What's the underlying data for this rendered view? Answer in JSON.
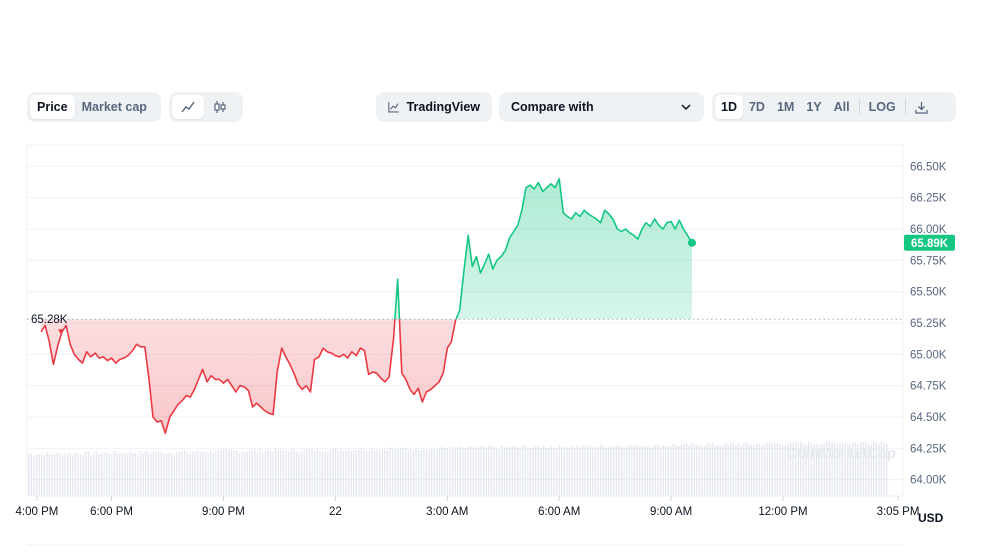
{
  "toolbar": {
    "type_tabs": [
      {
        "label": "Price",
        "active": true
      },
      {
        "label": "Market cap",
        "active": false
      }
    ],
    "mode_icons": [
      {
        "icon": "line-chart-icon",
        "active": true
      },
      {
        "icon": "candlestick-icon",
        "active": false
      }
    ],
    "tradingview_label": "TradingView",
    "compare_label": "Compare with",
    "ranges": [
      {
        "label": "1D",
        "active": true
      },
      {
        "label": "7D",
        "active": false
      },
      {
        "label": "1M",
        "active": false
      },
      {
        "label": "1Y",
        "active": false
      },
      {
        "label": "All",
        "active": false
      }
    ],
    "log_label": "LOG",
    "download_icon": "download-icon"
  },
  "watermark": "CoinMarketCap",
  "colors": {
    "up": "#16c784",
    "down": "#ea3943",
    "grid": "#eff2f5",
    "text": "#58667e"
  },
  "chart_data": {
    "type": "line",
    "currency": "USD",
    "open_label": "65.28K",
    "open_value": 65.28,
    "current_label": "65.89K",
    "current_value": 65.89,
    "ylim": [
      63.87,
      66.67
    ],
    "y_ticks": [
      {
        "value": 66.5,
        "label": "66.50K"
      },
      {
        "value": 66.25,
        "label": "66.25K"
      },
      {
        "value": 66.0,
        "label": "66.00K"
      },
      {
        "value": 65.75,
        "label": "65.75K"
      },
      {
        "value": 65.5,
        "label": "65.50K"
      },
      {
        "value": 65.25,
        "label": "65.25K"
      },
      {
        "value": 65.0,
        "label": "65.00K"
      },
      {
        "value": 64.75,
        "label": "64.75K"
      },
      {
        "value": 64.5,
        "label": "64.50K"
      },
      {
        "value": 64.25,
        "label": "64.25K"
      },
      {
        "value": 64.0,
        "label": "64.00K"
      }
    ],
    "xlim": [
      15.733,
      39.217
    ],
    "x_ticks": [
      {
        "value": 16.0,
        "label": "4:00 PM"
      },
      {
        "value": 18.0,
        "label": "6:00 PM"
      },
      {
        "value": 21.0,
        "label": "9:00 PM"
      },
      {
        "value": 24.0,
        "label": "22"
      },
      {
        "value": 27.0,
        "label": "3:00 AM"
      },
      {
        "value": 30.0,
        "label": "6:00 AM"
      },
      {
        "value": 33.0,
        "label": "9:00 AM"
      },
      {
        "value": 36.0,
        "label": "12:00 PM"
      },
      {
        "value": 39.083,
        "label": "3:05 PM"
      }
    ],
    "series": [
      {
        "values": [
          [
            16.11,
            65.18
          ],
          [
            16.22,
            65.23
          ],
          [
            16.33,
            65.1
          ],
          [
            16.44,
            64.92
          ],
          [
            16.56,
            65.07
          ],
          [
            16.67,
            65.18
          ],
          [
            16.78,
            65.23
          ],
          [
            16.89,
            65.08
          ],
          [
            17.0,
            65.0
          ],
          [
            17.11,
            64.96
          ],
          [
            17.22,
            64.93
          ],
          [
            17.33,
            65.02
          ],
          [
            17.44,
            64.98
          ],
          [
            17.56,
            65.01
          ],
          [
            17.67,
            64.97
          ],
          [
            17.78,
            64.98
          ],
          [
            17.89,
            64.95
          ],
          [
            18.0,
            64.97
          ],
          [
            18.11,
            64.93
          ],
          [
            18.22,
            64.96
          ],
          [
            18.33,
            64.97
          ],
          [
            18.44,
            64.99
          ],
          [
            18.56,
            65.03
          ],
          [
            18.67,
            65.08
          ],
          [
            18.78,
            65.06
          ],
          [
            18.89,
            65.06
          ],
          [
            19.0,
            64.81
          ],
          [
            19.11,
            64.5
          ],
          [
            19.22,
            64.46
          ],
          [
            19.33,
            64.47
          ],
          [
            19.44,
            64.37
          ],
          [
            19.56,
            64.5
          ],
          [
            19.67,
            64.55
          ],
          [
            19.78,
            64.6
          ],
          [
            19.89,
            64.63
          ],
          [
            20.0,
            64.67
          ],
          [
            20.11,
            64.66
          ],
          [
            20.22,
            64.72
          ],
          [
            20.33,
            64.8
          ],
          [
            20.44,
            64.88
          ],
          [
            20.56,
            64.78
          ],
          [
            20.67,
            64.83
          ],
          [
            20.78,
            64.8
          ],
          [
            20.89,
            64.8
          ],
          [
            21.0,
            64.77
          ],
          [
            21.11,
            64.8
          ],
          [
            21.22,
            64.75
          ],
          [
            21.33,
            64.7
          ],
          [
            21.44,
            64.75
          ],
          [
            21.56,
            64.74
          ],
          [
            21.67,
            64.71
          ],
          [
            21.78,
            64.58
          ],
          [
            21.89,
            64.61
          ],
          [
            22.0,
            64.58
          ],
          [
            22.11,
            64.55
          ],
          [
            22.22,
            64.53
          ],
          [
            22.33,
            64.52
          ],
          [
            22.44,
            64.86
          ],
          [
            22.56,
            65.05
          ],
          [
            22.67,
            64.98
          ],
          [
            22.78,
            64.92
          ],
          [
            22.89,
            64.85
          ],
          [
            23.0,
            64.76
          ],
          [
            23.11,
            64.72
          ],
          [
            23.22,
            64.75
          ],
          [
            23.33,
            64.7
          ],
          [
            23.44,
            64.96
          ],
          [
            23.56,
            64.98
          ],
          [
            23.67,
            65.05
          ],
          [
            23.78,
            65.02
          ],
          [
            23.89,
            65.01
          ],
          [
            24.0,
            64.99
          ],
          [
            24.11,
            64.98
          ],
          [
            24.22,
            65.0
          ],
          [
            24.33,
            64.97
          ],
          [
            24.44,
            65.02
          ],
          [
            24.56,
            64.99
          ],
          [
            24.67,
            65.05
          ],
          [
            24.78,
            65.03
          ],
          [
            24.89,
            64.84
          ],
          [
            25.0,
            64.86
          ],
          [
            25.11,
            64.85
          ],
          [
            25.22,
            64.81
          ],
          [
            25.33,
            64.78
          ],
          [
            25.44,
            64.82
          ],
          [
            25.56,
            65.13
          ],
          [
            25.67,
            65.6
          ],
          [
            25.78,
            64.85
          ],
          [
            25.89,
            64.8
          ],
          [
            26.0,
            64.72
          ],
          [
            26.11,
            64.68
          ],
          [
            26.22,
            64.73
          ],
          [
            26.33,
            64.62
          ],
          [
            26.44,
            64.7
          ],
          [
            26.56,
            64.72
          ],
          [
            26.67,
            64.75
          ],
          [
            26.78,
            64.78
          ],
          [
            26.89,
            64.85
          ],
          [
            27.0,
            65.05
          ],
          [
            27.11,
            65.1
          ],
          [
            27.22,
            65.27
          ],
          [
            27.33,
            65.35
          ],
          [
            27.44,
            65.65
          ],
          [
            27.56,
            65.95
          ],
          [
            27.67,
            65.7
          ],
          [
            27.78,
            65.78
          ],
          [
            27.89,
            65.65
          ],
          [
            28.0,
            65.72
          ],
          [
            28.11,
            65.8
          ],
          [
            28.22,
            65.68
          ],
          [
            28.33,
            65.75
          ],
          [
            28.44,
            65.78
          ],
          [
            28.56,
            65.83
          ],
          [
            28.67,
            65.93
          ],
          [
            28.78,
            65.98
          ],
          [
            28.89,
            66.03
          ],
          [
            29.0,
            66.15
          ],
          [
            29.11,
            66.33
          ],
          [
            29.22,
            66.35
          ],
          [
            29.33,
            66.32
          ],
          [
            29.44,
            66.37
          ],
          [
            29.56,
            66.3
          ],
          [
            29.67,
            66.33
          ],
          [
            29.78,
            66.36
          ],
          [
            29.89,
            66.33
          ],
          [
            30.0,
            66.4
          ],
          [
            30.11,
            66.13
          ],
          [
            30.22,
            66.1
          ],
          [
            30.33,
            66.08
          ],
          [
            30.44,
            66.13
          ],
          [
            30.56,
            66.1
          ],
          [
            30.67,
            66.15
          ],
          [
            30.78,
            66.12
          ],
          [
            30.89,
            66.1
          ],
          [
            31.0,
            66.08
          ],
          [
            31.11,
            66.05
          ],
          [
            31.22,
            66.15
          ],
          [
            31.33,
            66.12
          ],
          [
            31.44,
            66.08
          ],
          [
            31.56,
            66.0
          ],
          [
            31.67,
            65.98
          ],
          [
            31.78,
            66.0
          ],
          [
            31.89,
            65.97
          ],
          [
            32.0,
            65.95
          ],
          [
            32.11,
            65.92
          ],
          [
            32.22,
            66.0
          ],
          [
            32.33,
            66.05
          ],
          [
            32.44,
            66.02
          ],
          [
            32.56,
            66.08
          ],
          [
            32.67,
            66.03
          ],
          [
            32.78,
            66.0
          ],
          [
            32.89,
            66.05
          ],
          [
            33.0,
            66.06
          ],
          [
            33.11,
            66.0
          ],
          [
            33.22,
            66.07
          ],
          [
            33.33,
            66.0
          ],
          [
            33.44,
            65.95
          ],
          [
            33.56,
            65.89
          ]
        ]
      }
    ],
    "volume_hint": "volume bars along bottom"
  }
}
